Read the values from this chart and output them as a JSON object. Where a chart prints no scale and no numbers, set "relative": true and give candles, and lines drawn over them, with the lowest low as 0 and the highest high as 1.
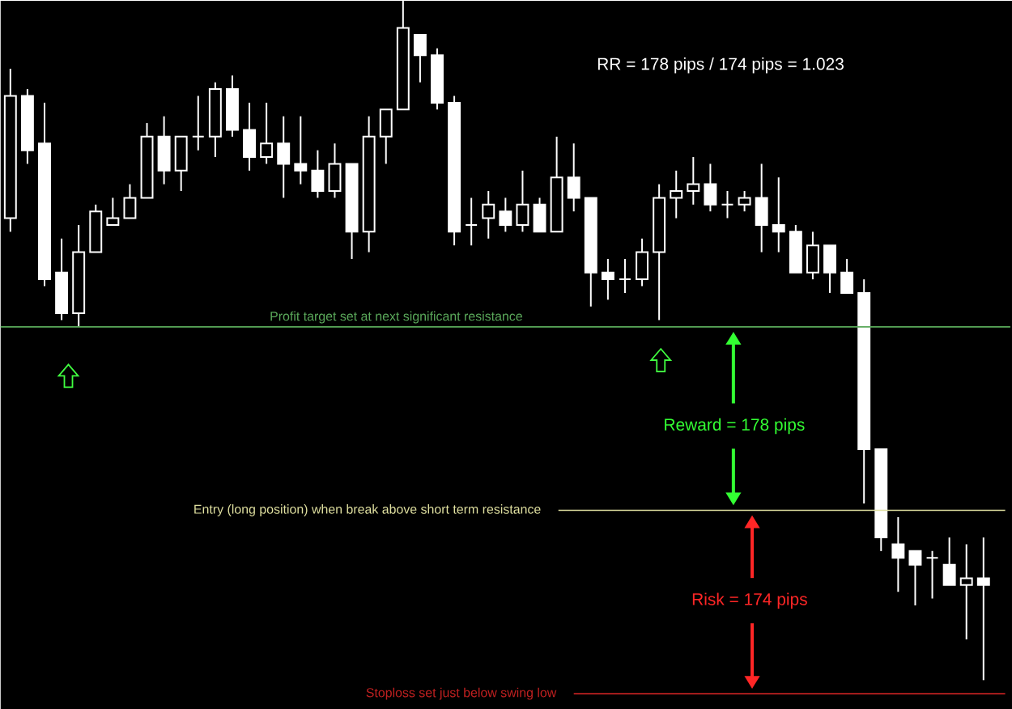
{
  "chart_data": {
    "type": "candlestick",
    "relative": true,
    "color": "#ffffff",
    "categories": [
      null,
      null,
      null,
      null,
      null,
      null,
      null,
      null,
      null,
      null,
      null,
      null,
      null,
      null,
      null,
      null,
      null,
      null,
      null,
      null,
      null,
      null,
      null,
      null,
      null,
      null,
      null,
      null,
      null,
      null,
      null,
      null,
      null,
      null,
      null,
      null,
      null,
      null,
      null,
      null,
      null,
      null,
      null,
      null,
      null,
      null,
      null,
      null,
      null,
      null,
      null,
      null,
      null,
      null,
      null,
      null,
      null,
      null
    ],
    "ohlc": [
      [
        0.68,
        0.9,
        0.66,
        0.86
      ],
      [
        0.86,
        0.87,
        0.76,
        0.78
      ],
      [
        0.79,
        0.85,
        0.58,
        0.59
      ],
      [
        0.6,
        0.65,
        0.53,
        0.54
      ],
      [
        0.54,
        0.67,
        0.52,
        0.63
      ],
      [
        0.63,
        0.7,
        0.63,
        0.69
      ],
      [
        0.67,
        0.71,
        0.67,
        0.68
      ],
      [
        0.68,
        0.73,
        0.68,
        0.71
      ],
      [
        0.71,
        0.82,
        0.71,
        0.8
      ],
      [
        0.8,
        0.83,
        0.73,
        0.75
      ],
      [
        0.75,
        0.8,
        0.72,
        0.8
      ],
      [
        0.8,
        0.86,
        0.78,
        0.8
      ],
      [
        0.8,
        0.88,
        0.77,
        0.87
      ],
      [
        0.87,
        0.89,
        0.8,
        0.81
      ],
      [
        0.81,
        0.85,
        0.75,
        0.77
      ],
      [
        0.77,
        0.85,
        0.76,
        0.79
      ],
      [
        0.79,
        0.83,
        0.71,
        0.76
      ],
      [
        0.76,
        0.83,
        0.73,
        0.75
      ],
      [
        0.75,
        0.78,
        0.71,
        0.72
      ],
      [
        0.72,
        0.79,
        0.71,
        0.76
      ],
      [
        0.76,
        0.76,
        0.62,
        0.66
      ],
      [
        0.66,
        0.83,
        0.63,
        0.8
      ],
      [
        0.8,
        0.84,
        0.76,
        0.84
      ],
      [
        0.84,
        1,
        0.84,
        0.96
      ],
      [
        0.95,
        0.95,
        0.88,
        0.92
      ],
      [
        0.92,
        0.93,
        0.84,
        0.85
      ],
      [
        0.85,
        0.86,
        0.64,
        0.66
      ],
      [
        0.67,
        0.71,
        0.64,
        0.67
      ],
      [
        0.68,
        0.72,
        0.65,
        0.7
      ],
      [
        0.69,
        0.71,
        0.66,
        0.67
      ],
      [
        0.67,
        0.75,
        0.66,
        0.7
      ],
      [
        0.7,
        0.71,
        0.66,
        0.66
      ],
      [
        0.66,
        0.8,
        0.66,
        0.74
      ],
      [
        0.74,
        0.79,
        0.69,
        0.71
      ],
      [
        0.71,
        0.71,
        0.55,
        0.6
      ],
      [
        0.6,
        0.62,
        0.56,
        0.59
      ],
      [
        0.59,
        0.62,
        0.57,
        0.59
      ],
      [
        0.59,
        0.65,
        0.58,
        0.63
      ],
      [
        0.63,
        0.73,
        0.53,
        0.71
      ],
      [
        0.71,
        0.75,
        0.68,
        0.72
      ],
      [
        0.72,
        0.77,
        0.7,
        0.73
      ],
      [
        0.73,
        0.76,
        0.69,
        0.7
      ],
      [
        0.7,
        0.72,
        0.68,
        0.7
      ],
      [
        0.7,
        0.72,
        0.69,
        0.71
      ],
      [
        0.71,
        0.76,
        0.63,
        0.67
      ],
      [
        0.67,
        0.74,
        0.63,
        0.66
      ],
      [
        0.66,
        0.67,
        0.6,
        0.6
      ],
      [
        0.6,
        0.66,
        0.59,
        0.64
      ],
      [
        0.64,
        0.64,
        0.57,
        0.6
      ],
      [
        0.6,
        0.62,
        0.57,
        0.57
      ],
      [
        0.57,
        0.59,
        0.26,
        0.34
      ],
      [
        0.34,
        0.34,
        0.19,
        0.21
      ],
      [
        0.2,
        0.24,
        0.13,
        0.18
      ],
      [
        0.19,
        0.19,
        0.11,
        0.17
      ],
      [
        0.18,
        0.19,
        0.12,
        0.18
      ],
      [
        0.17,
        0.21,
        0.14,
        0.14
      ],
      [
        0.14,
        0.2,
        0.06,
        0.15
      ],
      [
        0.15,
        0.21,
        0,
        0.14
      ]
    ],
    "ref_lines": [
      {
        "axis": "y",
        "value": 0.52,
        "label": "Profit target set at next significant resistance",
        "color": "#5aa85a"
      },
      {
        "axis": "y",
        "value": 0.25,
        "label": "Entry (long position) when break above short term resistance",
        "color": "#e0e0a0"
      },
      {
        "axis": "y",
        "value": -0.02,
        "label": "Stoploss set just below swing low",
        "color": "#c02020"
      }
    ],
    "annotations": [
      "RR = 178 pips / 174 pips = 1.023",
      "Reward = 178 pips",
      "Risk = 174 pips"
    ]
  }
}
